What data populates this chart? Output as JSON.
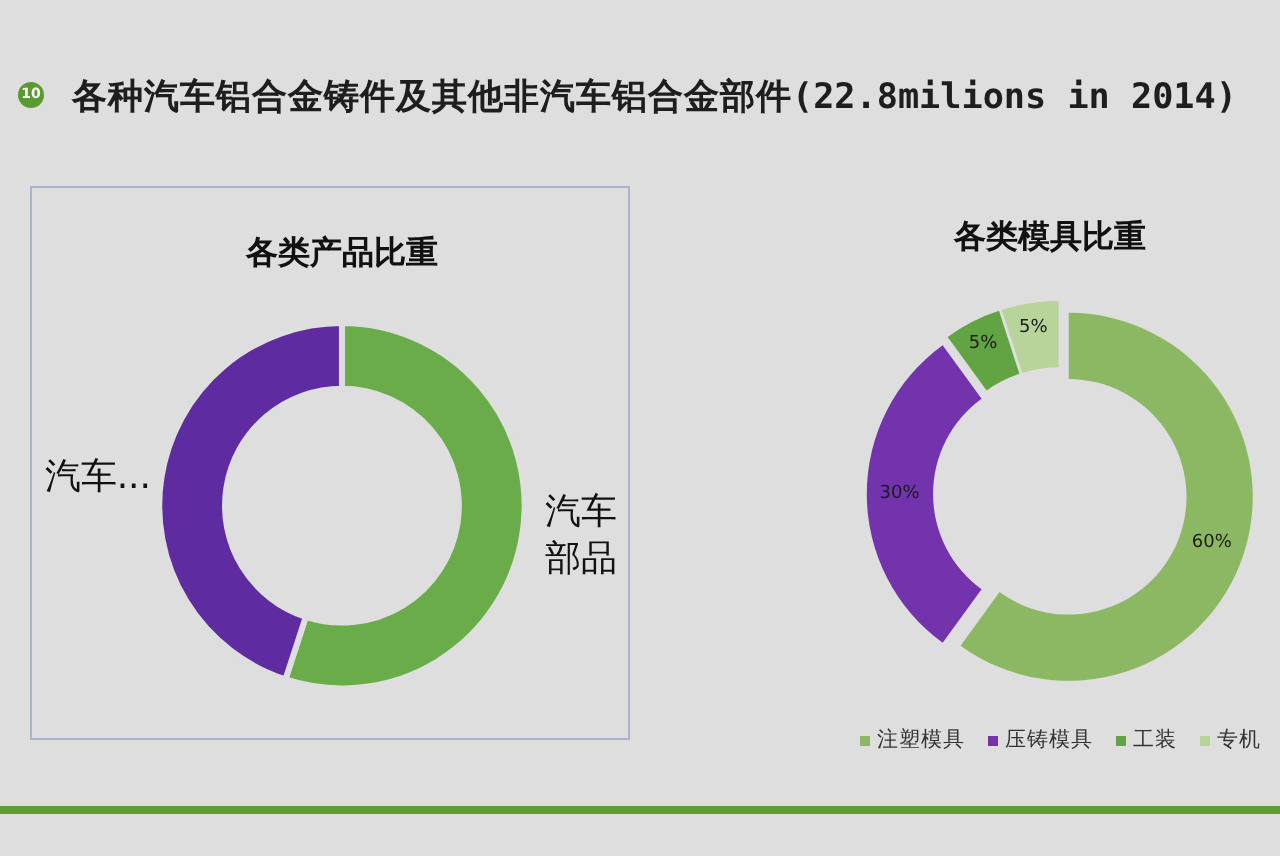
{
  "chart_data": [
    {
      "type": "other",
      "title": "各种汽车铝合金铸件及其他非汽车铝合金部件(22.8milions in 2014)",
      "annotations": [
        "10"
      ]
    },
    {
      "type": "donut",
      "title": "各类产品比重",
      "categories": [
        "汽车部品",
        "汽车..."
      ],
      "values": [
        55,
        45
      ],
      "colors": [
        "#6aab4a",
        "#5e2ca0"
      ]
    },
    {
      "type": "donut",
      "title": "各类模具比重",
      "categories": [
        "注塑模具",
        "压铸模具",
        "工装",
        "专机"
      ],
      "values": [
        60,
        30,
        5,
        5
      ],
      "colors": [
        "#8cb863",
        "#7233ad",
        "#62a443",
        "#b9d49b"
      ],
      "value_labels": [
        "60%",
        "30%",
        "5%",
        "5%"
      ],
      "legend": "bottom"
    }
  ]
}
